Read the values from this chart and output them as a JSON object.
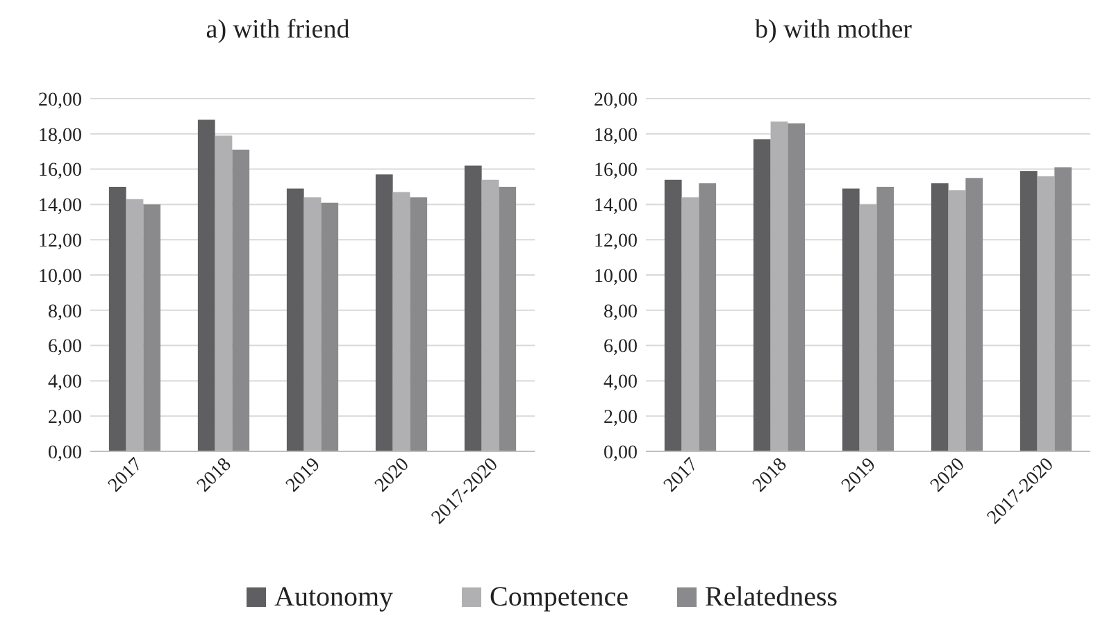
{
  "chart_data": [
    {
      "type": "bar",
      "title": "a) with friend",
      "categories": [
        "2017",
        "2018",
        "2019",
        "2020",
        "2017-2020"
      ],
      "ylim": [
        0,
        20
      ],
      "yticks": [
        {
          "value": 0,
          "label": "0,00"
        },
        {
          "value": 2,
          "label": "2,00"
        },
        {
          "value": 4,
          "label": "4,00"
        },
        {
          "value": 6,
          "label": "6,00"
        },
        {
          "value": 8,
          "label": "8,00"
        },
        {
          "value": 10,
          "label": "10,00"
        },
        {
          "value": 12,
          "label": "12,00"
        },
        {
          "value": 14,
          "label": "14,00"
        },
        {
          "value": 16,
          "label": "16,00"
        },
        {
          "value": 18,
          "label": "18,00"
        },
        {
          "value": 20,
          "label": "20,00"
        }
      ],
      "grid": "y",
      "legend": "bottom",
      "series": [
        {
          "name": "Autonomy",
          "color": "#5f5f61",
          "values": [
            15.0,
            18.8,
            14.9,
            15.7,
            16.2
          ]
        },
        {
          "name": "Competence",
          "color": "#b0b0b2",
          "values": [
            14.3,
            17.9,
            14.4,
            14.7,
            15.4
          ]
        },
        {
          "name": "Relatedness",
          "color": "#8a8a8c",
          "values": [
            14.0,
            17.1,
            14.1,
            14.4,
            15.0
          ]
        }
      ]
    },
    {
      "type": "bar",
      "title": "b) with mother",
      "categories": [
        "2017",
        "2018",
        "2019",
        "2020",
        "2017-2020"
      ],
      "ylim": [
        0,
        20
      ],
      "yticks": [
        {
          "value": 0,
          "label": "0,00"
        },
        {
          "value": 2,
          "label": "2,00"
        },
        {
          "value": 4,
          "label": "4,00"
        },
        {
          "value": 6,
          "label": "6,00"
        },
        {
          "value": 8,
          "label": "8,00"
        },
        {
          "value": 10,
          "label": "10,00"
        },
        {
          "value": 12,
          "label": "12,00"
        },
        {
          "value": 14,
          "label": "14,00"
        },
        {
          "value": 16,
          "label": "16,00"
        },
        {
          "value": 18,
          "label": "18,00"
        },
        {
          "value": 20,
          "label": "20,00"
        }
      ],
      "grid": "y",
      "legend": "bottom",
      "series": [
        {
          "name": "Autonomy",
          "color": "#5f5f61",
          "values": [
            15.4,
            17.7,
            14.9,
            15.2,
            15.9
          ]
        },
        {
          "name": "Competence",
          "color": "#b0b0b2",
          "values": [
            14.4,
            18.7,
            14.0,
            14.8,
            15.6
          ]
        },
        {
          "name": "Relatedness",
          "color": "#8a8a8c",
          "values": [
            15.2,
            18.6,
            15.0,
            15.5,
            16.1
          ]
        }
      ]
    }
  ]
}
